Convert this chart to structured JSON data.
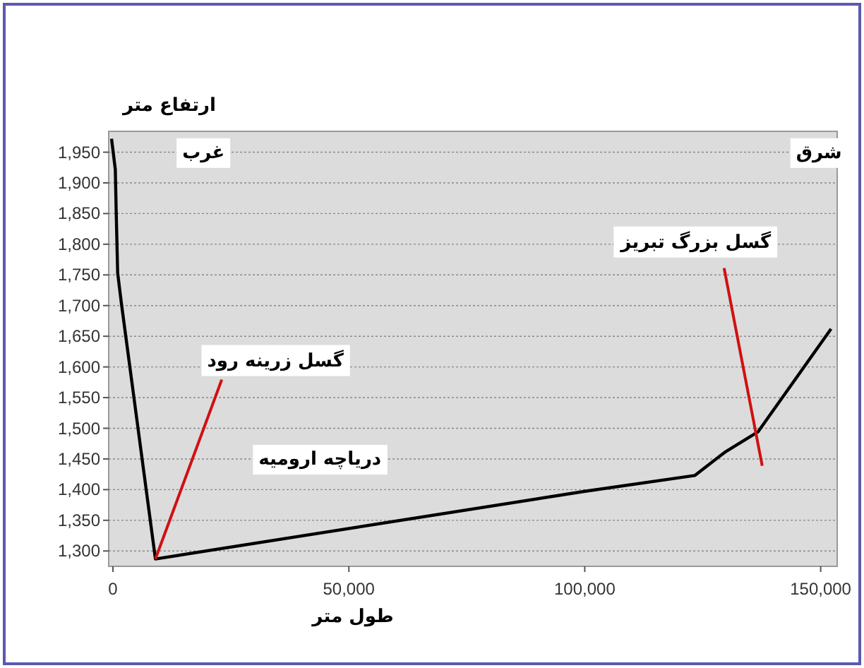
{
  "chart_data": {
    "type": "line",
    "xlabel": "طول متر",
    "ylabel": "ارتفاع متر",
    "x": [
      -300,
      500,
      700,
      1000,
      1800,
      9000,
      99800,
      123300,
      129700,
      136700,
      152200
    ],
    "values": [
      1972,
      1922,
      1849,
      1753,
      1703,
      1287,
      1397,
      1423,
      1461,
      1494,
      1662
    ],
    "color": "#000000",
    "xlim": [
      -900,
      153500
    ],
    "ylim": [
      1275,
      1984
    ],
    "xticks": [
      {
        "value": 0,
        "label": "0"
      },
      {
        "value": 50000,
        "label": "50,000"
      },
      {
        "value": 100000,
        "label": "100,000"
      },
      {
        "value": 150000,
        "label": "150,000"
      }
    ],
    "yticks": [
      {
        "value": 1300,
        "label": "1,300"
      },
      {
        "value": 1350,
        "label": "1,350"
      },
      {
        "value": 1400,
        "label": "1,400"
      },
      {
        "value": 1450,
        "label": "1,450"
      },
      {
        "value": 1500,
        "label": "1,500"
      },
      {
        "value": 1550,
        "label": "1,550"
      },
      {
        "value": 1600,
        "label": "1,600"
      },
      {
        "value": 1650,
        "label": "1,650"
      },
      {
        "value": 1700,
        "label": "1,700"
      },
      {
        "value": 1750,
        "label": "1,750"
      },
      {
        "value": 1800,
        "label": "1,800"
      },
      {
        "value": 1850,
        "label": "1,850"
      },
      {
        "value": 1900,
        "label": "1,900"
      },
      {
        "value": 1950,
        "label": "1,950"
      }
    ],
    "grid": "y",
    "annotations": [
      "غرب",
      "شرق",
      "دریاچه ارومیه",
      {
        "text": "گسل زرینه رود",
        "x": 9000,
        "y": 1287
      },
      "گسل بزرگ تبریز"
    ]
  }
}
